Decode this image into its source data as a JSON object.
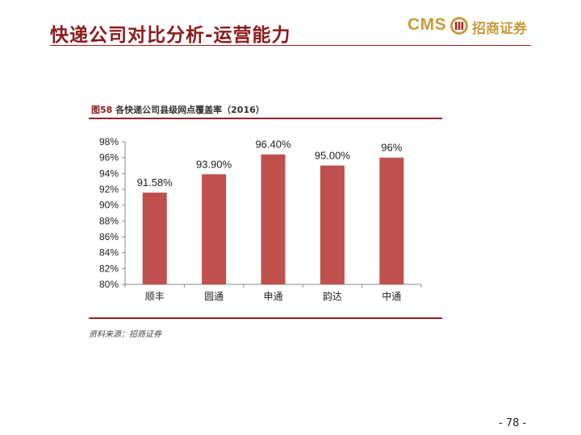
{
  "slide": {
    "title": "快递公司对比分析-运营能力",
    "page_number": "- 78 -"
  },
  "logo": {
    "brand_latin": "CMS",
    "brand_chinese": "招商证券",
    "color": "#c89b3c"
  },
  "figure": {
    "number": "图58",
    "caption": "各快递公司县级网点覆盖率（2016）",
    "source": "资料来源：招商证券"
  },
  "colors": {
    "title": "#8b1a1a",
    "rule": "#9b2222",
    "bar": "#c0504d"
  },
  "chart_data": {
    "type": "bar",
    "categories": [
      "顺丰",
      "圆通",
      "申通",
      "韵达",
      "中通"
    ],
    "values": [
      91.58,
      93.9,
      96.4,
      95.0,
      96.0
    ],
    "data_labels": [
      "91.58%",
      "93.90%",
      "96.40%",
      "95.00%",
      "96%"
    ],
    "ylim": [
      80,
      98
    ],
    "y_ticks": [
      "80%",
      "82%",
      "84%",
      "86%",
      "88%",
      "90%",
      "92%",
      "94%",
      "96%",
      "98%"
    ],
    "grid": false,
    "legend": "none"
  }
}
